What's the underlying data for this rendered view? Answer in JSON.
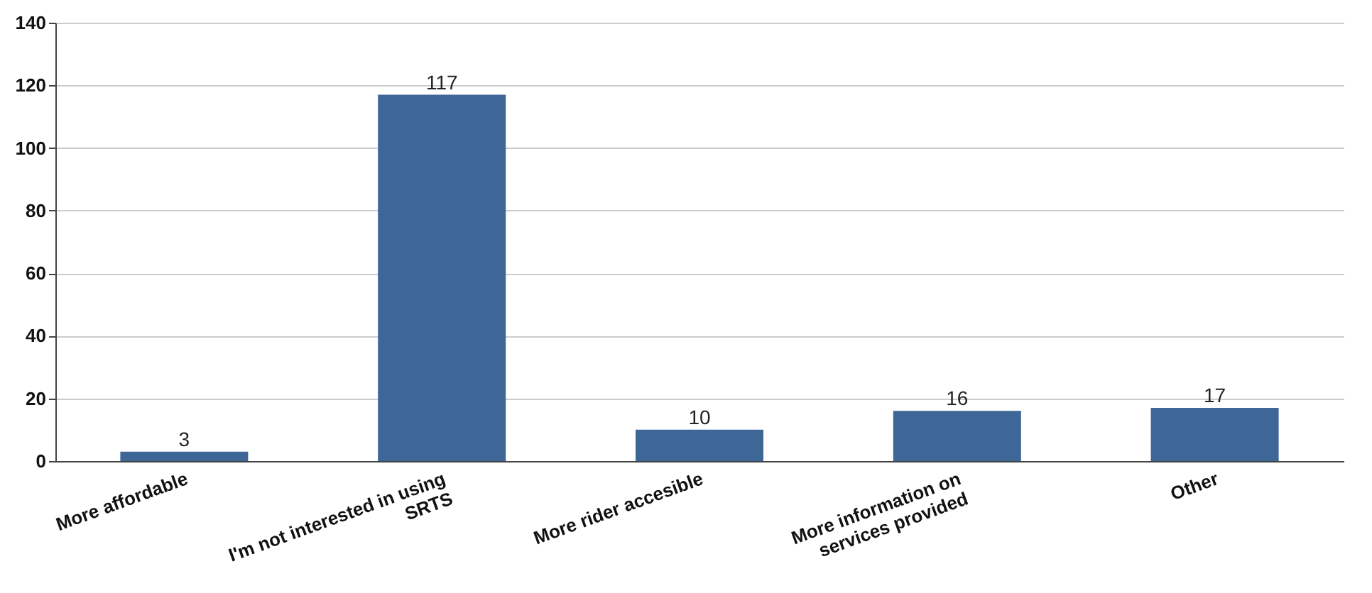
{
  "chart_data": {
    "type": "bar",
    "categories": [
      "More affordable",
      "I'm not interested in using\nSRTS",
      "More rider accesible",
      "More information on\nservices provided",
      "Other"
    ],
    "values": [
      3,
      117,
      10,
      16,
      17
    ],
    "color": "#3e6696",
    "ylim": [
      0,
      140
    ],
    "yticks": [
      0,
      20,
      40,
      60,
      80,
      100,
      120,
      140
    ],
    "grid": "y",
    "data_labels": true
  }
}
